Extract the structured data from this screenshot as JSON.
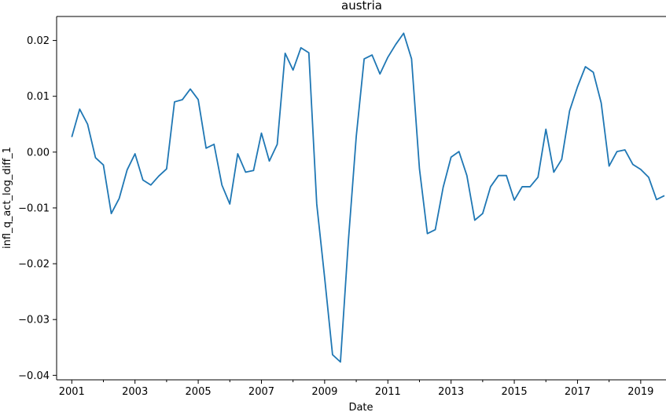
{
  "chart_data": {
    "type": "line",
    "title": "austria",
    "xlabel": "Date",
    "ylabel": "infl_q_act_log_diff_1",
    "xlim": [
      2000.52,
      2019.8
    ],
    "ylim": [
      -0.0408,
      0.0243
    ],
    "x_ticks": [
      2001,
      2003,
      2005,
      2007,
      2009,
      2011,
      2013,
      2015,
      2017,
      2019
    ],
    "x_tick_labels": [
      "2001",
      "2003",
      "2005",
      "2007",
      "2009",
      "2011",
      "2013",
      "2015",
      "2017",
      "2019"
    ],
    "x_minor_ticks": [
      2002,
      2004,
      2006,
      2008,
      2010,
      2012,
      2014,
      2016,
      2018
    ],
    "y_ticks": [
      -0.04,
      -0.03,
      -0.02,
      -0.01,
      0.0,
      0.01,
      0.02
    ],
    "y_tick_labels": [
      "−0.04",
      "−0.03",
      "−0.02",
      "−0.01",
      "0.00",
      "0.01",
      "0.02"
    ],
    "grid": false,
    "legend": "none",
    "series": [
      {
        "color": "#1f77b4",
        "x": [
          2001.0,
          2001.25,
          2001.5,
          2001.75,
          2002.0,
          2002.25,
          2002.5,
          2002.75,
          2003.0,
          2003.25,
          2003.5,
          2003.75,
          2004.0,
          2004.25,
          2004.5,
          2004.75,
          2005.0,
          2005.25,
          2005.5,
          2005.75,
          2006.0,
          2006.25,
          2006.5,
          2006.75,
          2007.0,
          2007.25,
          2007.5,
          2007.75,
          2008.0,
          2008.25,
          2008.5,
          2008.75,
          2009.0,
          2009.25,
          2009.5,
          2009.75,
          2010.0,
          2010.25,
          2010.5,
          2010.75,
          2011.0,
          2011.25,
          2011.5,
          2011.75,
          2012.0,
          2012.25,
          2012.5,
          2012.75,
          2013.0,
          2013.25,
          2013.5,
          2013.75,
          2014.0,
          2014.25,
          2014.5,
          2014.75,
          2015.0,
          2015.25,
          2015.5,
          2015.75,
          2016.0,
          2016.25,
          2016.5,
          2016.75,
          2017.0,
          2017.25,
          2017.5,
          2017.75,
          2018.0,
          2018.25,
          2018.5,
          2018.75,
          2019.0,
          2019.25,
          2019.5,
          2019.75
        ],
        "y": [
          0.0027,
          0.0077,
          0.005,
          -0.001,
          -0.0023,
          -0.011,
          -0.0083,
          -0.0032,
          -0.0003,
          -0.005,
          -0.0059,
          -0.0043,
          -0.003,
          0.009,
          0.0094,
          0.0113,
          0.0094,
          0.0007,
          0.0014,
          -0.0059,
          -0.0093,
          -0.0003,
          -0.0036,
          -0.0033,
          0.0034,
          -0.0016,
          0.0014,
          0.0177,
          0.0147,
          0.0187,
          0.0178,
          -0.0093,
          -0.0225,
          -0.0363,
          -0.0376,
          -0.016,
          0.0028,
          0.0167,
          0.0174,
          0.014,
          0.017,
          0.0193,
          0.0213,
          0.0167,
          -0.003,
          -0.0146,
          -0.0139,
          -0.0063,
          -0.0009,
          0.0001,
          -0.0042,
          -0.0122,
          -0.011,
          -0.0062,
          -0.0042,
          -0.0042,
          -0.0086,
          -0.0062,
          -0.0062,
          -0.0045,
          0.0041,
          -0.0036,
          -0.0013,
          0.0074,
          0.0117,
          0.0153,
          0.0143,
          0.0088,
          -0.0025,
          0.0001,
          0.0004,
          -0.0022,
          -0.0031,
          -0.0045,
          -0.0085,
          -0.0078
        ]
      }
    ]
  }
}
